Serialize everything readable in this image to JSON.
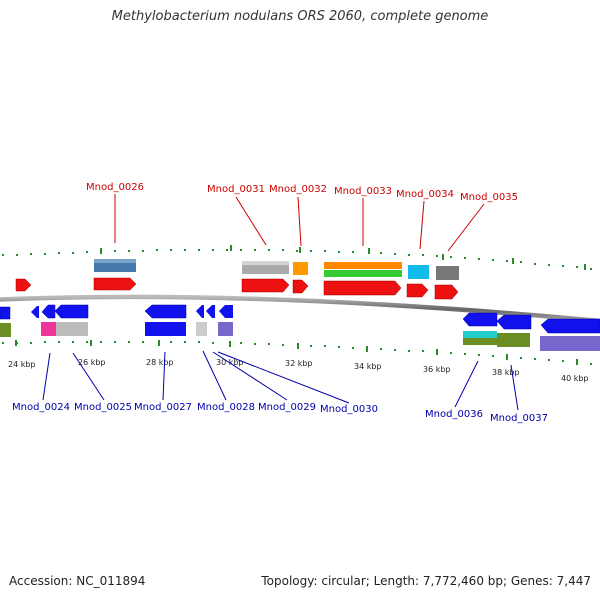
{
  "title": "Methylobacterium nodulans ORS 2060, complete genome",
  "accession_text": "Accession: NC_011894",
  "topology_text": "Topology: circular; Length: 7,772,460 bp; Genes: 7,447",
  "colors": {
    "forward_label": "#cc0000",
    "reverse_label": "#0000aa",
    "backbone": "#888888",
    "ticks": "#2a8a2a"
  },
  "scale_ticks": [
    "24 kbp",
    "26 kbp",
    "28 kbp",
    "30 kbp",
    "32 kbp",
    "34 kbp",
    "36 kbp",
    "38 kbp",
    "40 kbp"
  ],
  "top_labels": [
    {
      "text": "Mnod_0026"
    },
    {
      "text": "Mnod_0031"
    },
    {
      "text": "Mnod_0032"
    },
    {
      "text": "Mnod_0033"
    },
    {
      "text": "Mnod_0034"
    },
    {
      "text": "Mnod_0035"
    }
  ],
  "bottom_labels": [
    {
      "text": "Mnod_0024"
    },
    {
      "text": "Mnod_0025"
    },
    {
      "text": "Mnod_0027"
    },
    {
      "text": "Mnod_0028"
    },
    {
      "text": "Mnod_0029"
    },
    {
      "text": "Mnod_0030"
    },
    {
      "text": "Mnod_0036"
    },
    {
      "text": "Mnod_0037"
    }
  ]
}
